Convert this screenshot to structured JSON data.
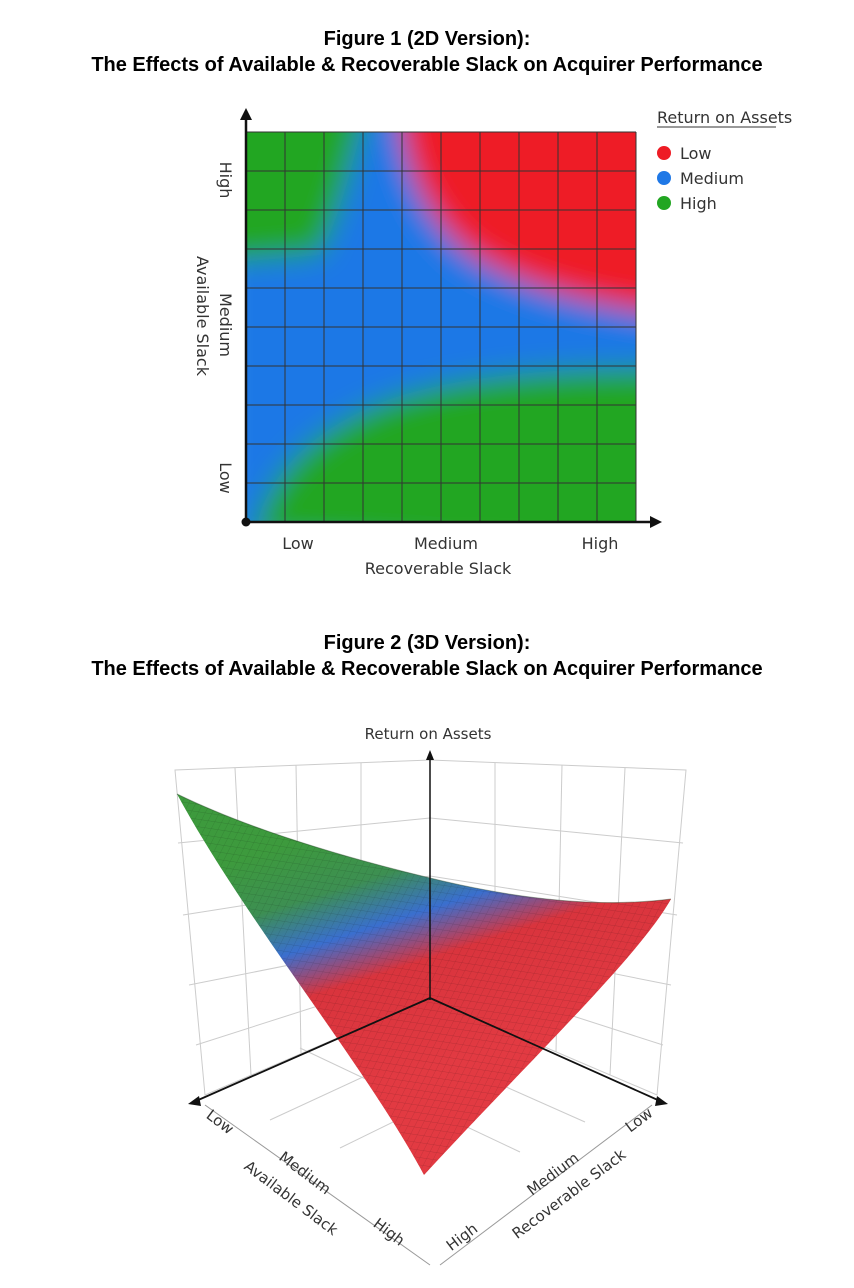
{
  "figure1": {
    "title_line1": "Figure 1 (2D Version):",
    "title_line2": "The Effects of Available & Recoverable Slack on Acquirer Performance"
  },
  "figure2": {
    "title_line1": "Figure 2 (3D Version):",
    "title_line2": "The Effects of Available & Recoverable Slack on Acquirer Performance"
  },
  "colors": {
    "low": "#ee1c25",
    "medium": "#1f78e6",
    "high": "#22a622",
    "grid": "#333333"
  },
  "chart_data": [
    {
      "type": "heatmap",
      "xlabel": "Recoverable Slack",
      "ylabel": "Available Slack",
      "x_ticks": [
        "Low",
        "Medium",
        "High"
      ],
      "y_ticks": [
        "Low",
        "Medium",
        "High"
      ],
      "legend_title": "Return on Assets",
      "legend": [
        {
          "label": "Low",
          "color": "#ee1c25"
        },
        {
          "label": "Medium",
          "color": "#1f78e6"
        },
        {
          "label": "High",
          "color": "#22a622"
        }
      ],
      "legend_position": "top-right",
      "grid": true,
      "regions": [
        {
          "level": "High",
          "where": "low recoverable slack with high available slack; and low available slack with medium-to-high recoverable slack"
        },
        {
          "level": "Medium",
          "where": "medium available slack band and the diagonal boundary zones"
        },
        {
          "level": "Low",
          "where": "high available slack with medium-to-high recoverable slack"
        }
      ]
    },
    {
      "type": "surface3d",
      "zlabel": "Return on Assets",
      "xlabel": "Available Slack",
      "ylabel": "Recoverable Slack",
      "x_ticks": [
        "Low",
        "Medium",
        "High"
      ],
      "y_ticks": [
        "Low",
        "Medium",
        "High"
      ],
      "grid": true,
      "color_scale": [
        "#d9343d",
        "#3a6fcf",
        "#3d9a3d"
      ]
    }
  ]
}
